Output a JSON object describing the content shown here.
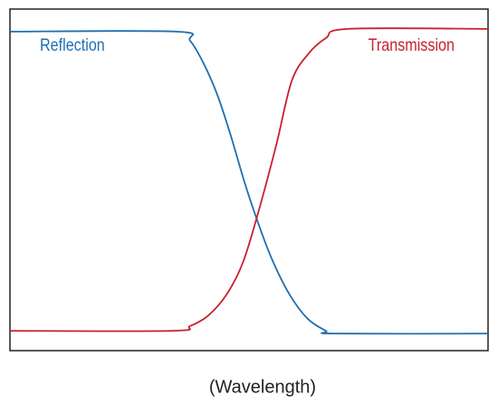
{
  "chart_data": {
    "type": "line",
    "xlabel": "(Wavelength)",
    "xlim": [
      0,
      100
    ],
    "ylim": [
      0,
      100
    ],
    "series": [
      {
        "name": "Reflection",
        "color": "#1f6fb2",
        "x": [
          0,
          34.8,
          37.7,
          40.5,
          43.4,
          46.2,
          49.0,
          51.5,
          54.7,
          58.5,
          62.3,
          66.1,
          68.0,
          100
        ],
        "values": [
          93.4,
          93.4,
          90.7,
          84.1,
          74.8,
          62.9,
          49.6,
          39.0,
          27.1,
          16.4,
          9.3,
          5.8,
          5.0,
          5.0
        ]
      },
      {
        "name": "Transmission",
        "color": "#c8202f",
        "x": [
          0,
          33.9,
          37.7,
          41.5,
          45.3,
          48.7,
          51.9,
          55.7,
          58.9,
          62.3,
          66.1,
          70.8,
          100
        ],
        "values": [
          5.8,
          5.8,
          7.2,
          10.3,
          16.4,
          25.7,
          40.3,
          60.2,
          78.8,
          86.7,
          91.5,
          94.2,
          94.2
        ]
      }
    ]
  }
}
